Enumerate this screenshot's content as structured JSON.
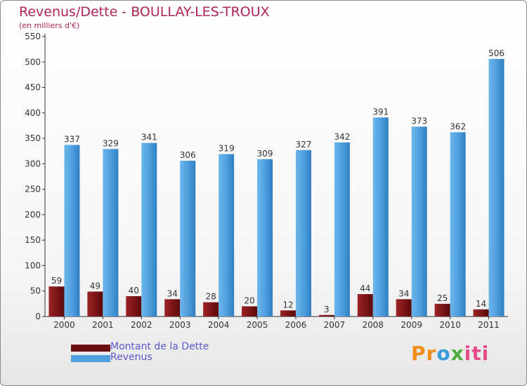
{
  "title": "Revenus/Dette - BOULLAY-LES-TROUX",
  "subtitle": "(en milliers d'€)",
  "colors": {
    "dette": "#7a1416",
    "revenus": "#4f9fdc",
    "title": "#b0245a",
    "legend_text": "#5a5acb"
  },
  "chart_data": {
    "type": "bar",
    "title": "Revenus/Dette - BOULLAY-LES-TROUX",
    "ylabel": "(en milliers d'€)",
    "xlabel": "",
    "ylim": [
      0,
      550
    ],
    "yticks": [
      0,
      50,
      100,
      150,
      200,
      250,
      300,
      350,
      400,
      450,
      500,
      550
    ],
    "grid": false,
    "categories": [
      "2000",
      "2001",
      "2002",
      "2003",
      "2004",
      "2005",
      "2006",
      "2007",
      "2008",
      "2009",
      "2010",
      "2011"
    ],
    "series": [
      {
        "name": "Montant de la Dette",
        "values": [
          59,
          49,
          40,
          34,
          28,
          20,
          12,
          3,
          44,
          34,
          25,
          14
        ]
      },
      {
        "name": "Revenus",
        "values": [
          337,
          329,
          341,
          306,
          319,
          309,
          327,
          342,
          391,
          373,
          362,
          506
        ]
      }
    ]
  },
  "legend": {
    "dette_label": "Montant de la Dette",
    "revenus_label": "Revenus"
  },
  "logo": {
    "parts": [
      "Pr",
      "o",
      "x",
      "iti"
    ]
  }
}
